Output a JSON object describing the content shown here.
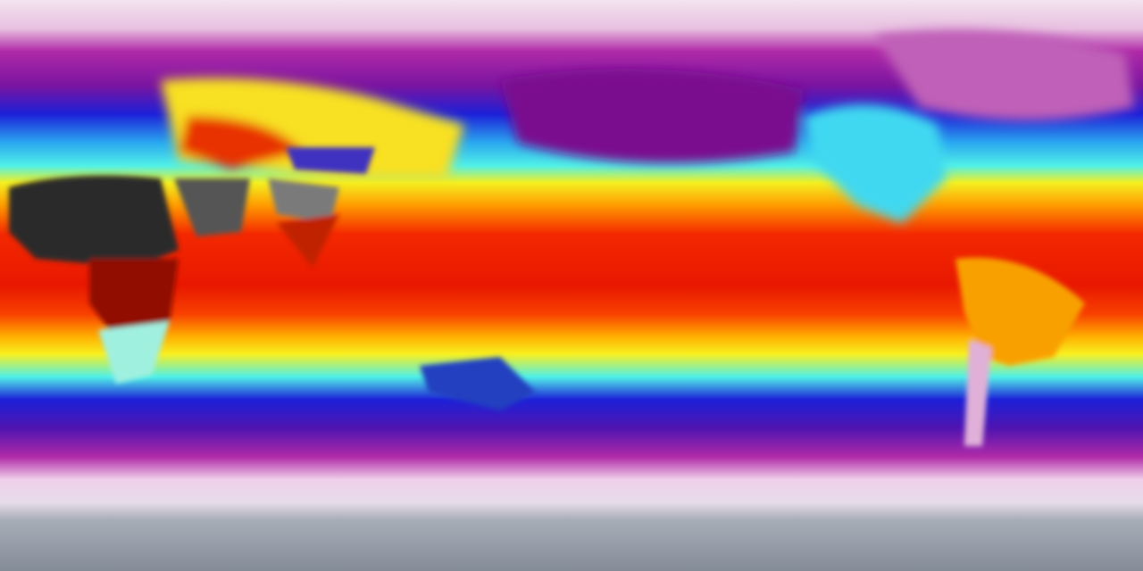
{
  "map": {
    "projection": "equirectangular",
    "colormap": {
      "polar_ice": "#8e96a0",
      "very_cold": "#f4e6f0",
      "cold": "#a0189a",
      "cool": "#1a1ad8",
      "mild": "#40e8f0",
      "warm": "#f8f020",
      "hot": "#f02000",
      "very_hot": "#a01000",
      "extreme": "#2a2a2a"
    }
  }
}
